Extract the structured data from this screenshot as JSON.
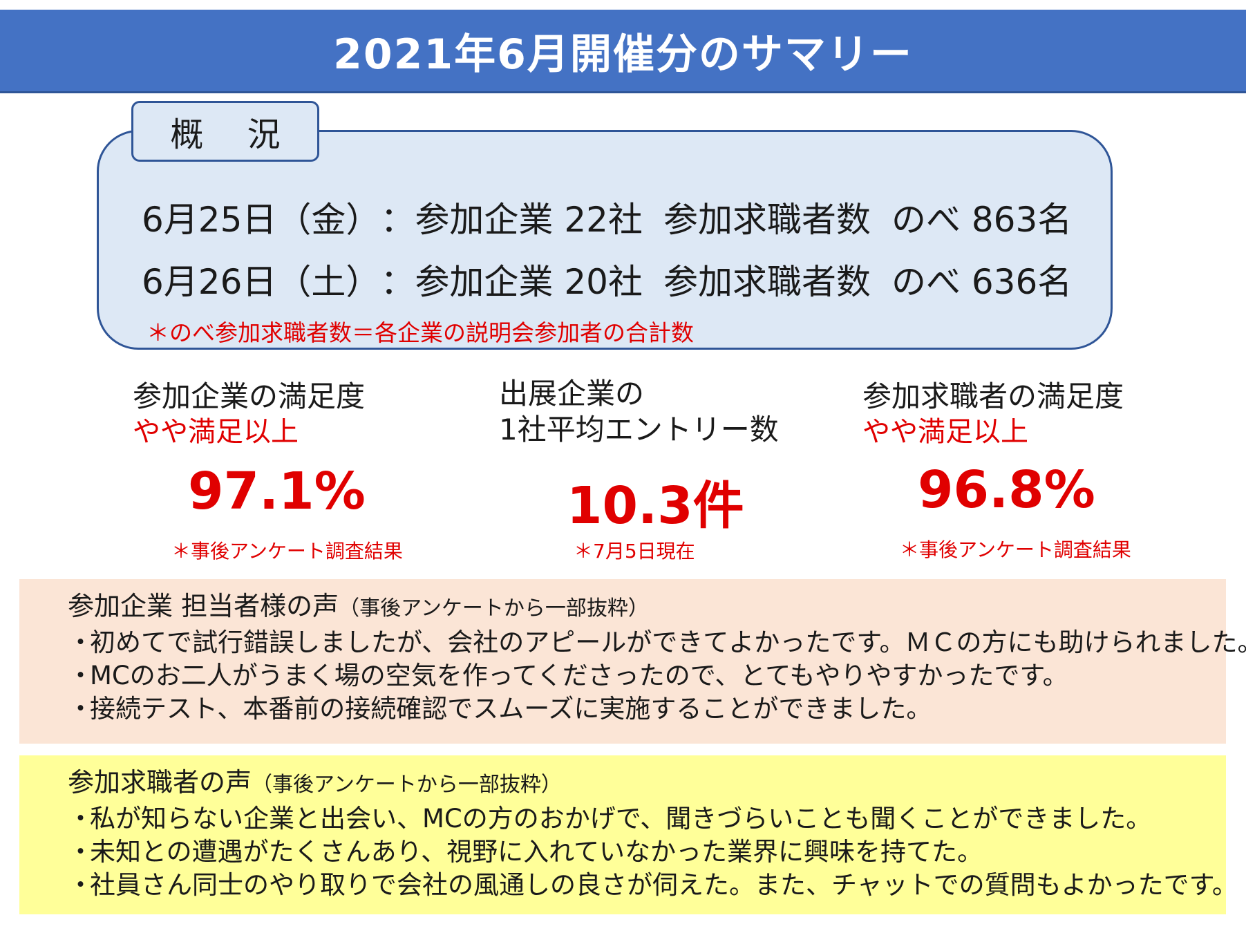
{
  "header": {
    "title": "2021年6月開催分のサマリー",
    "color": "#4472c4"
  },
  "overview": {
    "tab_label": "概 況",
    "lines": [
      {
        "date": "6月25日（金）",
        "companies": "：参加企業 22社",
        "seekers": "参加求職者数",
        "total": "のべ 863名"
      },
      {
        "date": "6月26日（土）",
        "companies": "：参加企業 20社",
        "seekers": "参加求職者数",
        "total": "のべ 636名"
      }
    ],
    "note": "＊のべ参加求職者数＝各企業の説明会参加者の合計数"
  },
  "metrics": [
    {
      "label": "参加企業の満足度",
      "sub": "やや満足以上",
      "value": "97.1%",
      "note": "＊事後アンケート調査結果"
    },
    {
      "label_line1": "出展企業の",
      "label_line2": "1社平均エントリー数",
      "value": "10.3件",
      "note": "＊7月5日現在"
    },
    {
      "label": "参加求職者の満足度",
      "sub": "やや満足以上",
      "value": "96.8%",
      "note": "＊事後アンケート調査結果"
    }
  ],
  "company_voices": {
    "heading": "参加企業 担当者様の声",
    "heading_sub": "（事後アンケートから一部抜粋）",
    "items": [
      "初めてで試行錯誤しましたが、会社のアピールができてよかったです。ＭＣの方にも助けられました。",
      "MCのお二人がうまく場の空気を作ってくださったので、とてもやりやすかったです。",
      "接続テスト、本番前の接続確認でスムーズに実施することができました。"
    ],
    "bg_color": "#fbe5d6"
  },
  "seeker_voices": {
    "heading": "参加求職者の声",
    "heading_sub": "（事後アンケートから一部抜粋）",
    "items": [
      "私が知らない企業と出会い、MCの方のおかげで、聞きづらいことも聞くことができました。",
      "未知との遭遇がたくさんあり、視野に入れていなかった業界に興味を持てた。",
      "社員さん同士のやり取りで会社の風通しの良さが伺えた。また、チャットでの質問もよかったです。"
    ],
    "bg_color": "#ffff99"
  },
  "bullet": "・"
}
